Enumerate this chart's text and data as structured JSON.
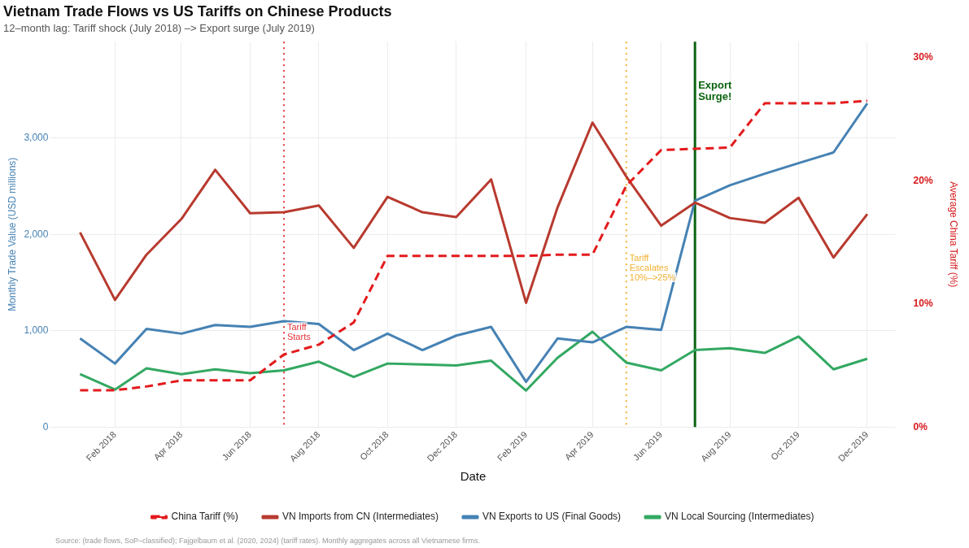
{
  "chart_data": {
    "type": "line",
    "title": "Vietnam Trade Flows vs US Tariffs on Chinese Products",
    "subtitle": "12–month lag: Tariff shock (July 2018) –> Export surge (July 2019)",
    "xlabel": "Date",
    "ylabel": "Monthly Trade Value (USD millions)",
    "y2label": "Average China Tariff (%)",
    "x": [
      "2018-01",
      "2018-02",
      "2018-03",
      "2018-04",
      "2018-05",
      "2018-06",
      "2018-07",
      "2018-08",
      "2018-09",
      "2018-10",
      "2018-11",
      "2018-12",
      "2019-01",
      "2019-02",
      "2019-03",
      "2019-04",
      "2019-05",
      "2019-06",
      "2019-07",
      "2019-08",
      "2019-09",
      "2019-10",
      "2019-11",
      "2019-12"
    ],
    "series": [
      {
        "name": "China Tariff (%)",
        "color": "#e41a1c",
        "axis": "y2",
        "line_style": "dashed",
        "values": [
          3.0,
          3.0,
          3.3,
          3.8,
          3.8,
          3.8,
          5.9,
          6.7,
          8.5,
          13.9,
          13.9,
          13.9,
          13.9,
          13.9,
          14.0,
          14.0,
          19.6,
          22.5,
          22.6,
          22.7,
          26.3,
          26.3,
          26.3,
          26.5
        ]
      },
      {
        "name": "VN Imports from CN (Intermediates)",
        "color": "#b83a2f",
        "values": [
          2020,
          1320,
          1790,
          2160,
          2670,
          2220,
          2230,
          2300,
          1860,
          2390,
          2230,
          2180,
          2570,
          1290,
          2280,
          3160,
          2600,
          2090,
          2330,
          2170,
          2120,
          2380,
          1760,
          2210
        ]
      },
      {
        "name": "VN Exports to US (Final Goods)",
        "color": "#4682b4",
        "values": [
          920,
          660,
          1020,
          970,
          1060,
          1040,
          1100,
          1070,
          800,
          970,
          800,
          950,
          1040,
          470,
          920,
          880,
          1040,
          1010,
          2350,
          2510,
          2630,
          2740,
          2850,
          3360
        ]
      },
      {
        "name": "VN Local Sourcing (Intermediates)",
        "color": "#33a862",
        "values": [
          550,
          390,
          610,
          550,
          600,
          560,
          590,
          680,
          520,
          660,
          650,
          640,
          690,
          380,
          720,
          990,
          670,
          590,
          800,
          820,
          770,
          940,
          600,
          710
        ]
      }
    ],
    "xlim": [
      "2017-12-06",
      "2019-12-26"
    ],
    "xticks": [
      {
        "value": "2018-02",
        "label": "Feb 2018"
      },
      {
        "value": "2018-04",
        "label": "Apr 2018"
      },
      {
        "value": "2018-06",
        "label": "Jun 2018"
      },
      {
        "value": "2018-08",
        "label": "Aug 2018"
      },
      {
        "value": "2018-10",
        "label": "Oct 2018"
      },
      {
        "value": "2018-12",
        "label": "Dec 2018"
      },
      {
        "value": "2019-02",
        "label": "Feb 2019"
      },
      {
        "value": "2019-04",
        "label": "Apr 2019"
      },
      {
        "value": "2019-06",
        "label": "Jun 2019"
      },
      {
        "value": "2019-08",
        "label": "Aug 2019"
      },
      {
        "value": "2019-10",
        "label": "Oct 2019"
      },
      {
        "value": "2019-12",
        "label": "Dec 2019"
      }
    ],
    "ylim": [
      0,
      4000
    ],
    "yticks": [
      0,
      {
        "value": 1000,
        "label": "1,000"
      },
      {
        "value": 2000,
        "label": "2,000"
      },
      {
        "value": 3000,
        "label": "3,000"
      }
    ],
    "y2lim": [
      0,
      31.3
    ],
    "y2ticks": [
      {
        "value": 0,
        "label": "0%"
      },
      {
        "value": 10,
        "label": "10%"
      },
      {
        "value": 20,
        "label": "20%"
      },
      {
        "value": 30,
        "label": "30%"
      }
    ],
    "ref_lines": [
      {
        "axis": "x",
        "value": "2018-07",
        "label": "Tariff\nStarts",
        "color": "#e4333a",
        "line_style": "dotted"
      },
      {
        "axis": "x",
        "value": "2019-05",
        "label": "Tariff\nEscalates\n10%–>25%",
        "color": "#f0b030",
        "line_style": "dotted"
      },
      {
        "axis": "x",
        "value": "2019-07",
        "label": "Export\nSurge!",
        "color": "#0b6410",
        "line_style": "solid"
      }
    ],
    "annotations": [
      "Source: (trade flows, SoP–classified); Fajgelbaum et al. (2020, 2024) (tariff rates). Monthly aggregates across all Vietnamese firms."
    ],
    "grid": true,
    "legend": "bottom",
    "marker": "none"
  }
}
